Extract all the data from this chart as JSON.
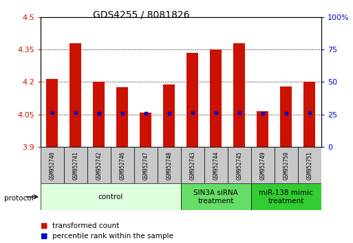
{
  "title": "GDS4255 / 8081826",
  "samples": [
    "GSM952740",
    "GSM952741",
    "GSM952742",
    "GSM952746",
    "GSM952747",
    "GSM952748",
    "GSM952743",
    "GSM952744",
    "GSM952745",
    "GSM952749",
    "GSM952750",
    "GSM952751"
  ],
  "bar_tops": [
    4.215,
    4.38,
    4.2,
    4.175,
    4.06,
    4.19,
    4.335,
    4.35,
    4.38,
    4.065,
    4.18,
    4.2
  ],
  "bar_bottoms": [
    3.9,
    3.9,
    3.9,
    3.9,
    3.9,
    3.9,
    3.9,
    3.9,
    3.9,
    3.9,
    3.9,
    3.9
  ],
  "percentile_pcts": [
    26.5,
    26.5,
    26.0,
    26.0,
    26.0,
    26.0,
    26.5,
    26.5,
    26.5,
    26.0,
    26.0,
    26.5
  ],
  "bar_color": "#cc1100",
  "dot_color": "#0000cc",
  "ylim_left": [
    3.9,
    4.5
  ],
  "ylim_right": [
    0,
    100
  ],
  "yticks_left": [
    3.9,
    4.05,
    4.2,
    4.35,
    4.5
  ],
  "ytick_labels_left": [
    "3.9",
    "4.05",
    "4.2",
    "4.35",
    "4.5"
  ],
  "yticks_right": [
    0,
    25,
    50,
    75,
    100
  ],
  "ytick_labels_right": [
    "0",
    "25",
    "50",
    "75",
    "100%"
  ],
  "groups": [
    {
      "label": "control",
      "start": 0,
      "end": 6,
      "color": "#ddffdd"
    },
    {
      "label": "SIN3A siRNA\ntreatment",
      "start": 6,
      "end": 9,
      "color": "#66dd66"
    },
    {
      "label": "miR-138 mimic\ntreatment",
      "start": 9,
      "end": 12,
      "color": "#33cc33"
    }
  ],
  "protocol_label": "protocol",
  "legend_items": [
    {
      "label": "transformed count",
      "color": "#cc1100"
    },
    {
      "label": "percentile rank within the sample",
      "color": "#0000cc"
    }
  ],
  "bar_width": 0.5,
  "left_label_color": "#cc1100",
  "right_label_color": "#0000cc",
  "title_fontsize": 10,
  "tick_fontsize": 8,
  "sample_fontsize": 5.5,
  "group_fontsize": 7.5,
  "legend_fontsize": 7.5
}
